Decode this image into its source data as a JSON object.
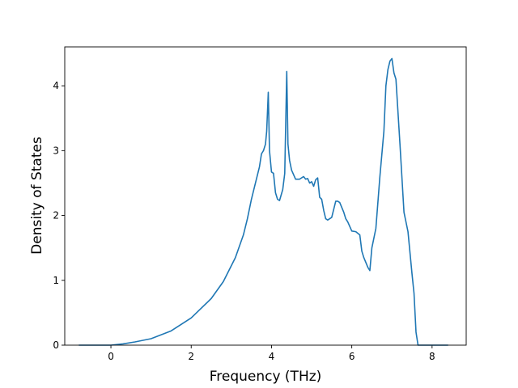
{
  "chart_data": {
    "type": "line",
    "title": "",
    "xlabel": "Frequency (THz)",
    "ylabel": "Density of States",
    "xlim": [
      -1.15,
      8.85
    ],
    "ylim": [
      0,
      4.6
    ],
    "grid": false,
    "legend": "none",
    "line_color": "#1f77b4",
    "xticks": [
      0,
      2,
      4,
      6,
      8
    ],
    "yticks": [
      0,
      1,
      2,
      3,
      4
    ],
    "series": [
      {
        "x": [
          -0.8,
          0.0,
          0.3,
          0.6,
          1.0,
          1.5,
          2.0,
          2.5,
          2.8,
          3.1,
          3.3,
          3.4,
          3.5,
          3.6,
          3.7,
          3.75,
          3.8,
          3.85,
          3.88,
          3.92,
          3.95,
          4.0,
          4.05,
          4.1,
          4.15,
          4.2,
          4.28,
          4.33,
          4.38,
          4.41,
          4.45,
          4.5,
          4.6,
          4.7,
          4.8,
          4.85,
          4.9,
          4.95,
          5.0,
          5.05,
          5.1,
          5.15,
          5.2,
          5.25,
          5.3,
          5.35,
          5.4,
          5.5,
          5.6,
          5.65,
          5.7,
          5.8,
          5.85,
          5.9,
          6.0,
          6.1,
          6.2,
          6.25,
          6.3,
          6.4,
          6.45,
          6.5,
          6.6,
          6.7,
          6.8,
          6.85,
          6.9,
          6.95,
          7.0,
          7.05,
          7.1,
          7.2,
          7.3,
          7.4,
          7.5,
          7.55,
          7.6,
          7.65,
          7.8,
          8.4
        ],
        "y": [
          0,
          0,
          0.02,
          0.05,
          0.1,
          0.22,
          0.42,
          0.72,
          0.98,
          1.35,
          1.7,
          1.95,
          2.25,
          2.5,
          2.75,
          2.95,
          3.0,
          3.1,
          3.3,
          3.9,
          3.0,
          2.67,
          2.65,
          2.35,
          2.25,
          2.23,
          2.4,
          2.65,
          4.22,
          3.1,
          2.85,
          2.7,
          2.56,
          2.56,
          2.6,
          2.56,
          2.57,
          2.5,
          2.52,
          2.45,
          2.55,
          2.58,
          2.28,
          2.25,
          2.08,
          1.95,
          1.93,
          1.97,
          2.22,
          2.22,
          2.2,
          2.05,
          1.95,
          1.9,
          1.76,
          1.75,
          1.7,
          1.45,
          1.35,
          1.2,
          1.15,
          1.5,
          1.8,
          2.6,
          3.3,
          4.0,
          4.25,
          4.38,
          4.42,
          4.2,
          4.1,
          3.1,
          2.05,
          1.75,
          1.1,
          0.8,
          0.2,
          0,
          0,
          0
        ]
      }
    ]
  }
}
